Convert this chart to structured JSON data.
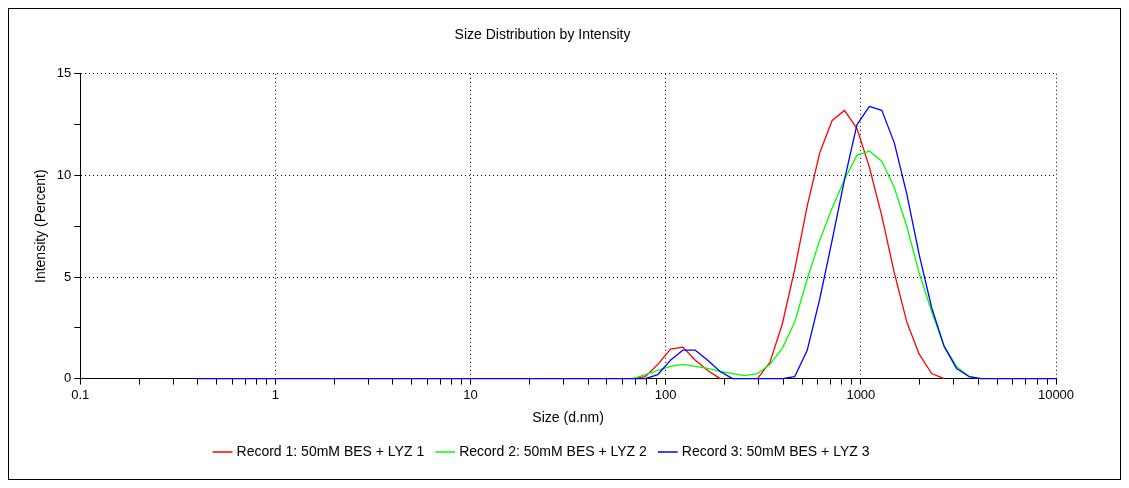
{
  "chart_data": {
    "type": "line",
    "title": "Size Distribution by Intensity",
    "xlabel": "Size (d.nm)",
    "ylabel": "Intensity (Percent)",
    "log": "x",
    "grid": true,
    "legend": "bottom",
    "marker": "none",
    "line_style": "solid",
    "xlim": [
      0.1,
      10000
    ],
    "ylim": [
      0,
      15
    ],
    "xticks": [
      0.1,
      {
        "value": 0.2,
        "label": null
      },
      {
        "value": 0.3,
        "label": null
      },
      {
        "value": 0.4,
        "label": null
      },
      {
        "value": 0.5,
        "label": null
      },
      {
        "value": 0.6,
        "label": null
      },
      {
        "value": 0.7,
        "label": null
      },
      {
        "value": 0.8,
        "label": null
      },
      {
        "value": 0.9,
        "label": null
      },
      1,
      {
        "value": 2,
        "label": null
      },
      {
        "value": 3,
        "label": null
      },
      {
        "value": 4,
        "label": null
      },
      {
        "value": 5,
        "label": null
      },
      {
        "value": 6,
        "label": null
      },
      {
        "value": 7,
        "label": null
      },
      {
        "value": 8,
        "label": null
      },
      {
        "value": 9,
        "label": null
      },
      10,
      {
        "value": 20,
        "label": null
      },
      {
        "value": 30,
        "label": null
      },
      {
        "value": 40,
        "label": null
      },
      {
        "value": 50,
        "label": null
      },
      {
        "value": 60,
        "label": null
      },
      {
        "value": 70,
        "label": null
      },
      {
        "value": 80,
        "label": null
      },
      {
        "value": 90,
        "label": null
      },
      100,
      {
        "value": 200,
        "label": null
      },
      {
        "value": 300,
        "label": null
      },
      {
        "value": 400,
        "label": null
      },
      {
        "value": 500,
        "label": null
      },
      {
        "value": 600,
        "label": null
      },
      {
        "value": 700,
        "label": null
      },
      {
        "value": 800,
        "label": null
      },
      {
        "value": 900,
        "label": null
      },
      1000,
      {
        "value": 2000,
        "label": null
      },
      {
        "value": 3000,
        "label": null
      },
      {
        "value": 4000,
        "label": null
      },
      {
        "value": 5000,
        "label": null
      },
      {
        "value": 6000,
        "label": null
      },
      {
        "value": 7000,
        "label": null
      },
      {
        "value": 8000,
        "label": null
      },
      {
        "value": 9000,
        "label": null
      },
      10000
    ],
    "yticks": [
      0,
      {
        "value": 2.5,
        "label": null
      },
      5,
      {
        "value": 7.5,
        "label": null
      },
      10,
      {
        "value": 12.5,
        "label": null
      },
      15
    ],
    "x": [
      0.4,
      58.7,
      67.9,
      78.7,
      91.2,
      105.7,
      122.4,
      141.8,
      164.2,
      190.1,
      220.2,
      255,
      295.3,
      342,
      396.1,
      458.7,
      531.2,
      615.1,
      712.4,
      825,
      955.4,
      1106,
      1281,
      1484,
      1718,
      1990,
      2305,
      2669,
      3091,
      3580,
      4145,
      10000
    ],
    "series": [
      {
        "name": "Record 1: 50mM BES + LYZ 1",
        "color": "#ff0000",
        "values": [
          null,
          null,
          0,
          0.1,
          0.7,
          1.45,
          1.55,
          0.9,
          0.4,
          0,
          null,
          null,
          0,
          0.8,
          2.7,
          5.4,
          8.5,
          11.1,
          12.7,
          13.2,
          12.3,
          10.4,
          8.0,
          5.2,
          2.8,
          1.2,
          0.25,
          0,
          null,
          null,
          null,
          null
        ]
      },
      {
        "name": "Record 2: 50mM BES + LYZ 2",
        "color": "#00ff00",
        "values": [
          null,
          null,
          0,
          0.2,
          0.4,
          0.6,
          0.7,
          0.6,
          0.5,
          0.35,
          0.25,
          0.15,
          0.25,
          0.7,
          1.5,
          2.8,
          4.9,
          6.8,
          8.4,
          9.8,
          11.0,
          11.2,
          10.7,
          9.4,
          7.5,
          5.2,
          3.3,
          1.6,
          0.6,
          0.1,
          0,
          null
        ]
      },
      {
        "name": "Record 3: 50mM BES + LYZ 3",
        "color": "#0000ff",
        "values": [
          0,
          0,
          0,
          0,
          0.2,
          0.9,
          1.4,
          1.4,
          0.9,
          0.35,
          0,
          0,
          0,
          0,
          0,
          0.1,
          1.4,
          3.9,
          6.8,
          9.8,
          12.5,
          13.4,
          13.2,
          11.6,
          9.1,
          6.1,
          3.5,
          1.6,
          0.5,
          0.1,
          0,
          0
        ]
      }
    ]
  }
}
